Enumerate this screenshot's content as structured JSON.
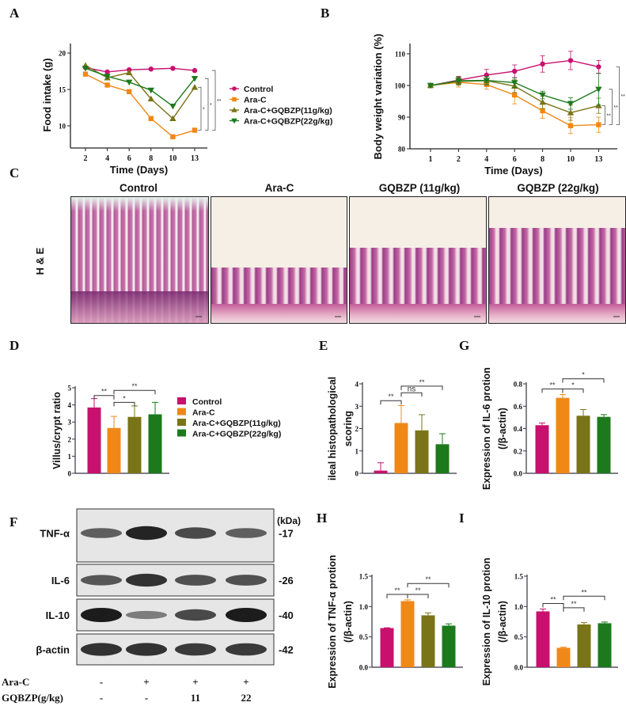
{
  "colors": {
    "control": "#c8106e",
    "arac": "#f08818",
    "gq11": "#7a7418",
    "gq22": "#1c7a1c"
  },
  "groups": [
    "Control",
    "Ara-C",
    "Ara-C+GQBZP(11g/kg)",
    "Ara-C+GQBZP(22g/kg)"
  ],
  "panels": {
    "A": "A",
    "B": "B",
    "C": "C",
    "D": "D",
    "E": "E",
    "F": "F",
    "G": "G",
    "H": "H",
    "I": "I"
  },
  "histology": {
    "row_label": "H & E",
    "titles": [
      "Control",
      "Ara-C",
      "GQBZP (11g/kg)",
      "GQBZP (22g/kg)"
    ]
  },
  "western_blot": {
    "unit_label": "(kDa)",
    "proteins": [
      {
        "name": "TNF-α",
        "kda": "-17",
        "intensity": [
          0.55,
          0.95,
          0.7,
          0.55
        ]
      },
      {
        "name": "IL-6",
        "kda": "-26",
        "intensity": [
          0.6,
          0.85,
          0.65,
          0.65
        ]
      },
      {
        "name": "IL-10",
        "kda": "-40",
        "intensity": [
          1.0,
          0.35,
          0.7,
          1.0
        ]
      },
      {
        "name": "β-actin",
        "kda": "-42",
        "intensity": [
          0.85,
          0.85,
          0.8,
          0.8
        ]
      }
    ],
    "conditions": [
      {
        "label": "Ara-C",
        "values": [
          "-",
          "+",
          "+",
          "+"
        ]
      },
      {
        "label": "GQBZP(g/kg)",
        "values": [
          "-",
          "-",
          "11",
          "22"
        ]
      }
    ]
  },
  "chart_data": [
    {
      "id": "A",
      "type": "line",
      "xlabel": "Time (Days)",
      "ylabel": "Food intake (g)",
      "x": [
        "2",
        "4",
        "6",
        "8",
        "10",
        "13"
      ],
      "yticks": [
        "10",
        "15",
        "20"
      ],
      "ylim": [
        7,
        21
      ],
      "legend": "right",
      "series": [
        {
          "name": "Control",
          "marker": "circle",
          "values": [
            18.0,
            17.4,
            17.7,
            17.8,
            17.9,
            17.6
          ]
        },
        {
          "name": "Ara-C",
          "marker": "square",
          "values": [
            17.1,
            15.6,
            14.7,
            11.0,
            8.5,
            9.4
          ]
        },
        {
          "name": "Ara-C+GQBZP(11g/kg)",
          "marker": "triangle-up",
          "values": [
            18.3,
            16.6,
            17.3,
            13.7,
            11.0,
            15.3
          ]
        },
        {
          "name": "Ara-C+GQBZP(22g/kg)",
          "marker": "triangle-down",
          "values": [
            17.9,
            16.8,
            16.0,
            14.9,
            12.7,
            16.5
          ]
        }
      ],
      "significance": [
        {
          "from": 1,
          "to": 2,
          "label": "*"
        },
        {
          "from": 1,
          "to": 3,
          "label": "*"
        },
        {
          "from": 1,
          "to": 0,
          "label": "**"
        }
      ]
    },
    {
      "id": "B",
      "type": "line",
      "xlabel": "Time (Days)",
      "ylabel": "Body weight variation (%)",
      "x": [
        "1",
        "2",
        "4",
        "6",
        "8",
        "10",
        "13"
      ],
      "yticks": [
        "80",
        "90",
        "100",
        "110"
      ],
      "ylim": [
        80,
        113
      ],
      "series": [
        {
          "name": "Control",
          "marker": "circle",
          "values": [
            100,
            101.7,
            103.3,
            104.5,
            106.8,
            107.9,
            105.9
          ],
          "err": [
            0.3,
            1.2,
            1.8,
            2.0,
            2.6,
            2.9,
            2.0
          ]
        },
        {
          "name": "Ara-C",
          "marker": "square",
          "values": [
            100,
            101.0,
            100.3,
            97.0,
            92.0,
            87.3,
            87.6
          ],
          "err": [
            0.3,
            1.5,
            1.5,
            2.8,
            2.4,
            2.5,
            2.4
          ]
        },
        {
          "name": "Ara-C+GQBZP(11g/kg)",
          "marker": "triangle-up",
          "values": [
            100,
            101.3,
            101.5,
            99.8,
            94.7,
            91.4,
            93.6
          ],
          "err": [
            0.3,
            1.2,
            1.4,
            2.0,
            2.0,
            2.4,
            2.4
          ]
        },
        {
          "name": "Ara-C+GQBZP(22g/kg)",
          "marker": "triangle-down",
          "values": [
            100,
            101.5,
            101.6,
            100.9,
            97.0,
            94.3,
            98.8
          ],
          "err": [
            0.3,
            1.2,
            1.3,
            1.5,
            1.2,
            1.8,
            5.0
          ]
        }
      ],
      "significance": [
        {
          "from": 1,
          "to": 2,
          "label": "**"
        },
        {
          "from": 1,
          "to": 3,
          "label": "**"
        },
        {
          "from": 1,
          "to": 0,
          "label": "**"
        }
      ]
    },
    {
      "id": "D",
      "type": "bar",
      "ylabel": "Villus/crypt ratio",
      "categories": [
        "Control",
        "Ara-C",
        "Ara-C+GQBZP(11g/kg)",
        "Ara-C+GQBZP(22g/kg)"
      ],
      "values": [
        3.85,
        2.65,
        3.3,
        3.45
      ],
      "err": [
        0.52,
        0.68,
        0.64,
        0.7
      ],
      "yticks": [
        "0",
        "1",
        "2",
        "3",
        "4",
        "5"
      ],
      "ylim": [
        0,
        5
      ],
      "legend": "right",
      "significance": [
        {
          "from": 0,
          "to": 1,
          "level": 4.55,
          "label": "**"
        },
        {
          "from": 1,
          "to": 3,
          "level": 4.85,
          "label": "**"
        },
        {
          "from": 1,
          "to": 2,
          "level": 4.15,
          "label": "*"
        }
      ]
    },
    {
      "id": "E",
      "type": "bar",
      "ylabel": "ileal histopathological",
      "ylabel2": "scoring",
      "categories": [
        "Control",
        "Ara-C",
        "Ara-C+GQBZP(11g/kg)",
        "Ara-C+GQBZP(22g/kg)"
      ],
      "values": [
        0.12,
        2.25,
        1.92,
        1.3
      ],
      "err": [
        0.35,
        0.78,
        0.7,
        0.47
      ],
      "yticks": [
        "0",
        "1",
        "2",
        "3",
        "4"
      ],
      "ylim": [
        0,
        4
      ],
      "significance": [
        {
          "from": 0,
          "to": 1,
          "level": 3.25,
          "label": "**"
        },
        {
          "from": 1,
          "to": 2,
          "level": 3.6,
          "label": "ns"
        },
        {
          "from": 1,
          "to": 3,
          "level": 3.9,
          "label": "**"
        }
      ]
    },
    {
      "id": "G",
      "type": "bar",
      "ylabel": "Expression of IL-6 protion",
      "ylabel2": "(/β-actin)",
      "categories": [
        "Control",
        "Ara-C",
        "Ara-C+GQBZP(11g/kg)",
        "Ara-C+GQBZP(22g/kg)"
      ],
      "values": [
        0.43,
        0.675,
        0.515,
        0.505
      ],
      "err": [
        0.02,
        0.03,
        0.055,
        0.02
      ],
      "yticks": [
        "0.0",
        "0.2",
        "0.4",
        "0.6",
        "0.8"
      ],
      "ylim": [
        0,
        0.8
      ],
      "significance": [
        {
          "from": 0,
          "to": 1,
          "level": 0.755,
          "label": "**"
        },
        {
          "from": 1,
          "to": 2,
          "level": 0.755,
          "label": "*"
        },
        {
          "from": 1,
          "to": 3,
          "level": 0.845,
          "label": "*"
        }
      ]
    },
    {
      "id": "H",
      "type": "bar",
      "ylabel": "Expression of TNF-α protion",
      "ylabel2": "(/β-actin)",
      "categories": [
        "Control",
        "Ara-C",
        "Ara-C+GQBZP(11g/kg)",
        "Ara-C+GQBZP(22g/kg)"
      ],
      "values": [
        0.645,
        1.09,
        0.855,
        0.685
      ],
      "err": [
        0.005,
        0.02,
        0.04,
        0.03
      ],
      "yticks": [
        "0.0",
        "0.5",
        "1.0",
        "1.5"
      ],
      "ylim": [
        0,
        1.5
      ],
      "significance": [
        {
          "from": 0,
          "to": 1,
          "level": 1.2,
          "label": "**"
        },
        {
          "from": 1,
          "to": 2,
          "level": 1.2,
          "label": "**"
        },
        {
          "from": 1,
          "to": 3,
          "level": 1.38,
          "label": "**"
        }
      ]
    },
    {
      "id": "I",
      "type": "bar",
      "ylabel": "Expression of IL-10 protion",
      "ylabel2": "(/β-actin)",
      "categories": [
        "Control",
        "Ara-C",
        "Ara-C+GQBZP(11g/kg)",
        "Ara-C+GQBZP(22g/kg)"
      ],
      "values": [
        0.92,
        0.32,
        0.705,
        0.725
      ],
      "err": [
        0.04,
        0.01,
        0.03,
        0.02
      ],
      "yticks": [
        "0.0",
        "0.5",
        "1.0",
        "1.5"
      ],
      "ylim": [
        0,
        1.5
      ],
      "significance": [
        {
          "from": 0,
          "to": 1,
          "level": 1.05,
          "label": "**"
        },
        {
          "from": 1,
          "to": 2,
          "level": 0.98,
          "label": "**"
        },
        {
          "from": 1,
          "to": 3,
          "level": 1.17,
          "label": "**"
        }
      ]
    }
  ]
}
